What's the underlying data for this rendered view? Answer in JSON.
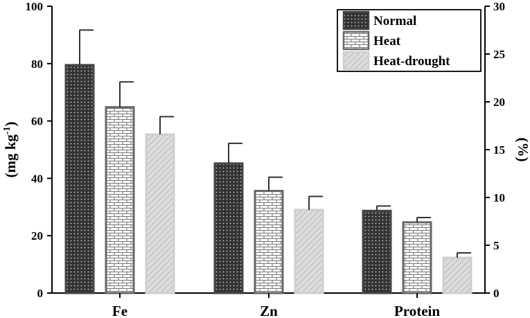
{
  "chart_data": {
    "type": "bar",
    "categories": [
      "Fe",
      "Zn",
      "Protein"
    ],
    "series": [
      {
        "name": "Normal",
        "values": [
          79.5,
          45.2,
          8.6
        ],
        "errors": [
          12.2,
          7.0,
          0.5
        ],
        "axis": [
          "left",
          "left",
          "right"
        ],
        "pattern": "dots",
        "color": "#333333",
        "edge": "#444444"
      },
      {
        "name": "Heat",
        "values": [
          64.8,
          35.6,
          7.4
        ],
        "errors": [
          8.8,
          4.8,
          0.5
        ],
        "axis": [
          "left",
          "left",
          "right"
        ],
        "pattern": "brick",
        "color": "#ffffff",
        "edge": "#666666"
      },
      {
        "name": "Heat-drought",
        "values": [
          55.3,
          29.0,
          3.7
        ],
        "errors": [
          6.2,
          4.7,
          0.5
        ],
        "axis": [
          "left",
          "left",
          "right"
        ],
        "pattern": "diagonal",
        "color": "#d8d8d8",
        "edge": "#cfcfcf"
      }
    ],
    "left_axis": {
      "label_main": "(mg kg",
      "label_sup": "-1",
      "label_end": ")",
      "ylim": [
        0,
        100
      ],
      "ticks": [
        "0",
        "20",
        "40",
        "60",
        "80",
        "100"
      ]
    },
    "right_axis": {
      "label": "(%)",
      "ylim": [
        0,
        30
      ],
      "ticks": [
        "0",
        "5",
        "10",
        "15",
        "20",
        "25",
        "30"
      ]
    },
    "legend": {
      "position": "top-right"
    },
    "grid": false
  }
}
